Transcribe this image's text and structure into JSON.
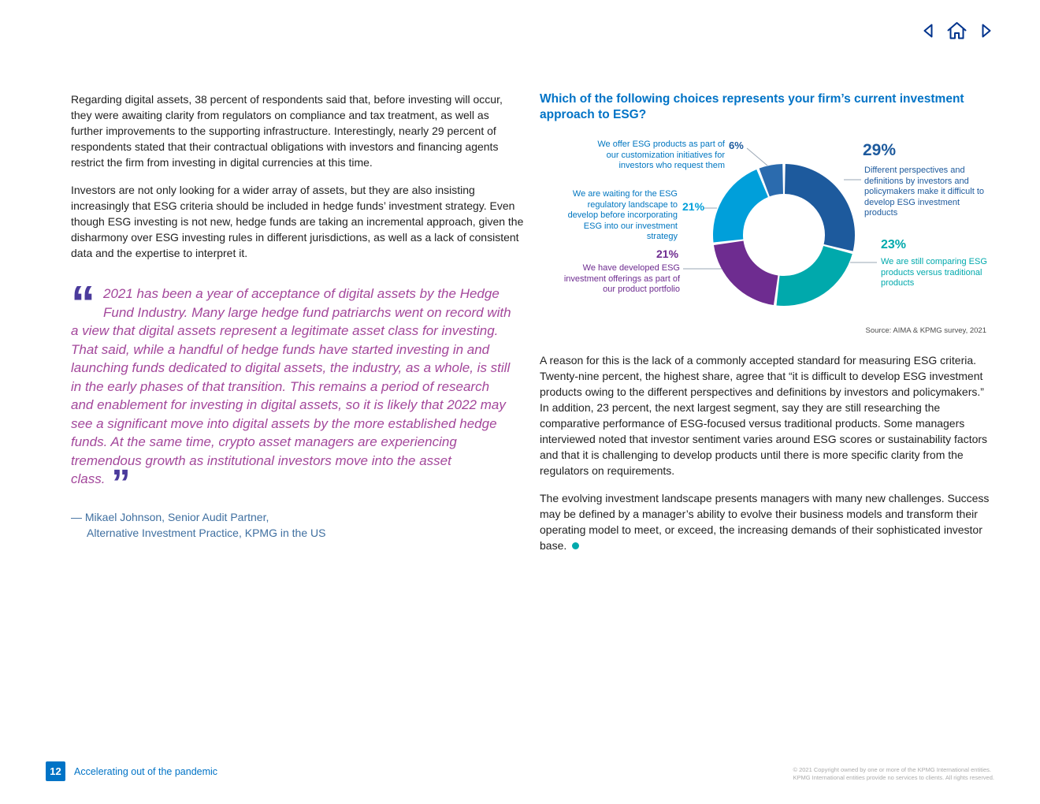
{
  "nav": {
    "icons": [
      "back-arrow",
      "home",
      "forward-arrow"
    ]
  },
  "left_column": {
    "para1": "Regarding digital assets, 38 percent of respondents said that, before investing will occur, they were awaiting clarity from regulators on compliance and tax treatment, as well as further improvements to the supporting infrastructure. Interestingly, nearly 29 percent of respondents stated that their contractual obligations with investors and financing agents restrict the firm from investing in digital currencies at this time.",
    "para2": "Investors are not only looking for a wider array of assets, but they are also insisting increasingly that ESG criteria should be included in hedge funds’ investment strategy. Even though ESG investing is not new, hedge funds are taking an incremental approach, given the disharmony over ESG investing rules in different jurisdictions, as well as a lack of consistent data and the expertise to interpret it.",
    "quote": "2021 has been a year of acceptance of digital assets by the Hedge Fund Industry. Many large hedge fund patriarchs went on record with a view that digital assets represent a legitimate asset class for investing. That said, while a handful of hedge funds have started investing in and launching funds dedicated to digital assets, the industry, as a whole, is still in the early phases of that transition. This remains a period of research and enablement for investing in digital assets, so it is likely that 2022 may see a significant move into digital assets by the more established hedge funds. At the same time, crypto asset managers are experiencing tremendous growth as institutional investors move into the asset class.",
    "attribution_line1": "— Mikael Johnson, Senior Audit Partner,",
    "attribution_line2": "Alternative Investment Practice, KPMG in the US"
  },
  "right_column": {
    "para1": "A reason for this is the lack of a commonly accepted standard for measuring ESG criteria. Twenty-nine percent, the highest share, agree that “it is difficult to develop ESG investment products owing to the different perspectives and definitions by investors and policymakers.” In addition, 23 percent, the next largest segment, say they are still researching the comparative performance of ESG-focused versus traditional products. Some managers interviewed noted that investor sentiment varies around ESG scores or sustainability factors and that it is challenging to develop products until there is more specific clarity from the regulators on requirements.",
    "para2": "The evolving investment landscape presents managers with many new challenges. Success may be defined by a manager’s ability to evolve their business models and transform their operating model to meet, or exceed, the increasing demands of their sophisticated investor base."
  },
  "chart_data": {
    "type": "pie",
    "style": "donut",
    "title": "Which of the following choices represents your firm’s current investment approach to ESG?",
    "source": "Source: AIMA & KPMG survey, 2021",
    "legend_position": "around",
    "segments": [
      {
        "pct": "29%",
        "value": 29,
        "color": "#1D5A9D",
        "label": "Different perspectives and definitions by investors and policymakers make it difficult to develop ESG investment products"
      },
      {
        "pct": "23%",
        "value": 23,
        "color": "#00A9AC",
        "label": "We are still comparing ESG products versus traditional products"
      },
      {
        "pct": "21%",
        "value": 21,
        "color": "#6E2C90",
        "label": "We have developed ESG investment offerings as part of our product portfolio"
      },
      {
        "pct": "21%",
        "value": 21,
        "color": "#009FDA",
        "label": "We are waiting for the ESG regulatory landscape to develop before incorporating ESG into our investment strategy"
      },
      {
        "pct": "6%",
        "value": 6,
        "color": "#2B6BAE",
        "label": "We offer ESG products as part of our customization initiatives for investors who request them"
      }
    ]
  },
  "footer": {
    "page_number": "12",
    "title": "Accelerating out of the pandemic",
    "copyright_line1": "© 2021 Copyright owned by one or more of the KPMG International entities.",
    "copyright_line2": "KPMG International entities provide no services to clients. All rights reserved."
  },
  "colors": {
    "heading_blue": "#0073C6",
    "quote_purple": "#A3479B",
    "quote_mark_violet": "#4B3B9C",
    "attribution_blue": "#3F6FA0",
    "end_dot_teal": "#00A9AC",
    "footer_blue": "#0073C6"
  }
}
